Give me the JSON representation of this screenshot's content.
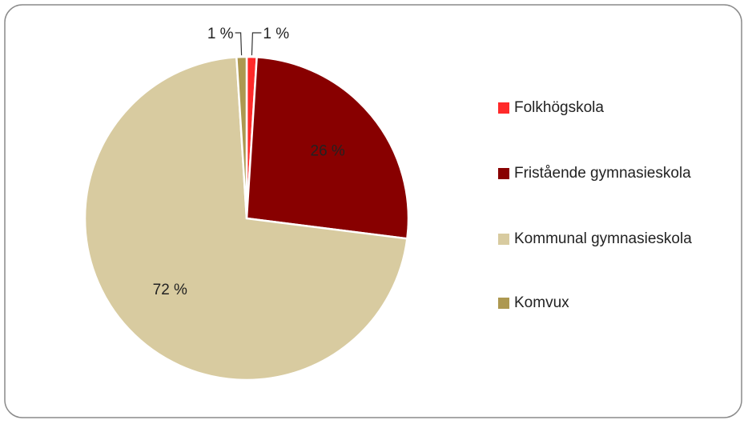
{
  "chart_data": {
    "type": "pie",
    "categories": [
      "Folkhögskola",
      "Fristående gymnasieskola",
      "Kommunal gymnasieskola",
      "Komvux"
    ],
    "values": [
      1,
      26,
      72,
      1
    ],
    "value_labels": [
      "1 %",
      "26 %",
      "72 %",
      "1 %"
    ],
    "colors": [
      "#ff2a2a",
      "#880000",
      "#d8cba0",
      "#ad9850"
    ],
    "legend": "right"
  }
}
